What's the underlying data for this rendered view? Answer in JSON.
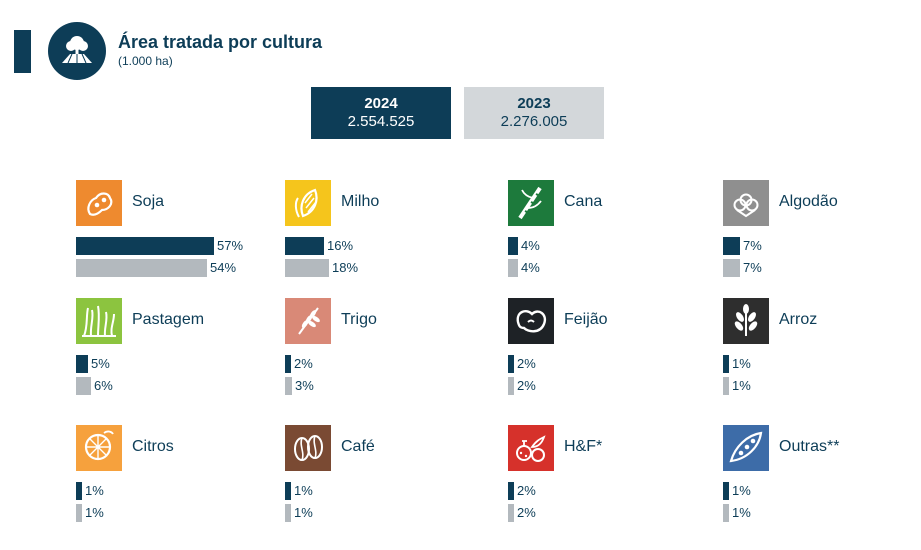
{
  "header": {
    "title": "Área tratada por cultura",
    "subtitle": "(1.000 ha)",
    "icon": "field-tree-icon"
  },
  "totals": [
    {
      "year": "2024",
      "value": "2.554.525"
    },
    {
      "year": "2023",
      "value": "2.276.005"
    }
  ],
  "colors": {
    "primary": "#0d3d57",
    "bar_2024": "#0d3d57",
    "bar_2023": "#b3b9be",
    "year_2023_bg": "#d3d7da"
  },
  "chart_data": {
    "type": "bar",
    "categories": [
      "Soja",
      "Milho",
      "Cana",
      "Algodão",
      "Pastagem",
      "Trigo",
      "Feijão",
      "Arroz",
      "Citros",
      "Café",
      "H&F*",
      "Outras**"
    ],
    "series": [
      {
        "name": "2024",
        "values": [
          57,
          16,
          4,
          7,
          5,
          2,
          2,
          1,
          1,
          1,
          2,
          1
        ],
        "labels": [
          "57%",
          "16%",
          "4%",
          "7%",
          "5%",
          "2%",
          "2%",
          "1%",
          "1%",
          "1%",
          "2%",
          "1%"
        ]
      },
      {
        "name": "2023",
        "values": [
          54,
          18,
          4,
          7,
          6,
          3,
          2,
          1,
          1,
          1,
          2,
          1
        ],
        "labels": [
          "54%",
          "18%",
          "4%",
          "7%",
          "6%",
          "3%",
          "2%",
          "1%",
          "1%",
          "1%",
          "2%",
          "1%"
        ]
      }
    ],
    "icons": [
      "soybean-icon",
      "corn-icon",
      "sugarcane-icon",
      "cotton-icon",
      "pasture-icon",
      "wheat-icon",
      "bean-icon",
      "rice-icon",
      "citrus-icon",
      "coffee-icon",
      "vegetables-fruits-icon",
      "pea-pod-icon"
    ],
    "icon_colors": [
      "#ee8a2f",
      "#f5c51c",
      "#1d7a3c",
      "#8f8f8f",
      "#8cc43f",
      "#d98977",
      "#1e2226",
      "#2e2e2e",
      "#f6a13d",
      "#7a4a33",
      "#d6312b",
      "#3d6ca8"
    ],
    "unit": "%"
  }
}
